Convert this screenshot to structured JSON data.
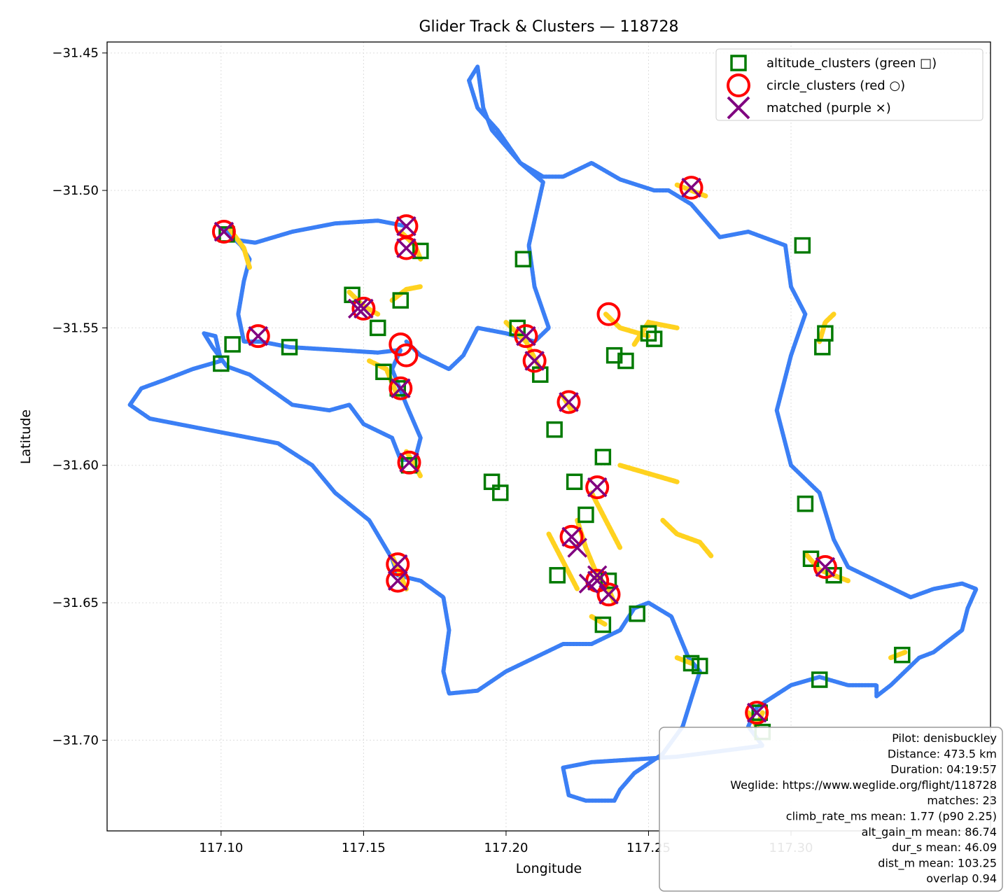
{
  "chart_data": {
    "type": "scatter",
    "title": "Glider Track & Clusters — 118728",
    "xlabel": "Longitude",
    "ylabel": "Latitude",
    "xlim": [
      117.06,
      117.37
    ],
    "ylim": [
      -31.733,
      -31.446
    ],
    "xticks": [
      {
        "value": 117.1,
        "label": "117.10"
      },
      {
        "value": 117.15,
        "label": "117.15"
      },
      {
        "value": 117.2,
        "label": "117.20"
      },
      {
        "value": 117.25,
        "label": "117.25"
      },
      {
        "value": 117.3,
        "label": "117.30"
      }
    ],
    "yticks": [
      {
        "value": -31.45,
        "label": "−31.45"
      },
      {
        "value": -31.5,
        "label": "−31.50"
      },
      {
        "value": -31.55,
        "label": "−31.55"
      },
      {
        "value": -31.6,
        "label": "−31.60"
      },
      {
        "value": -31.65,
        "label": "−31.65"
      },
      {
        "value": -31.7,
        "label": "−31.70"
      }
    ],
    "grid": true,
    "legend_position": "top-right",
    "colors": {
      "track": "#3b7ff5",
      "climb": "#ffd21f",
      "altitude_clusters": "#007a00",
      "circle_clusters": "#ff0000",
      "matched": "#800080"
    },
    "legend": [
      {
        "key": "altitude_clusters",
        "label": "altitude_clusters (green □)",
        "marker": "square"
      },
      {
        "key": "circle_clusters",
        "label": "circle_clusters (red ○)",
        "marker": "circle"
      },
      {
        "key": "matched",
        "label": "matched (purple ×)",
        "marker": "x"
      }
    ],
    "track": [
      [
        117.165,
        -31.513
      ],
      [
        117.155,
        -31.511
      ],
      [
        117.14,
        -31.512
      ],
      [
        117.125,
        -31.515
      ],
      [
        117.112,
        -31.519
      ],
      [
        117.105,
        -31.518
      ],
      [
        117.101,
        -31.514
      ],
      [
        117.107,
        -31.52
      ],
      [
        117.11,
        -31.525
      ],
      [
        117.108,
        -31.533
      ],
      [
        117.106,
        -31.545
      ],
      [
        117.108,
        -31.555
      ],
      [
        117.114,
        -31.555
      ],
      [
        117.124,
        -31.557
      ],
      [
        117.14,
        -31.558
      ],
      [
        117.155,
        -31.559
      ],
      [
        117.163,
        -31.558
      ],
      [
        117.163,
        -31.558
      ],
      [
        117.16,
        -31.565
      ],
      [
        117.165,
        -31.578
      ],
      [
        117.17,
        -31.59
      ],
      [
        117.168,
        -31.598
      ],
      [
        117.163,
        -31.598
      ],
      [
        117.16,
        -31.59
      ],
      [
        117.15,
        -31.585
      ],
      [
        117.145,
        -31.578
      ],
      [
        117.138,
        -31.58
      ],
      [
        117.125,
        -31.578
      ],
      [
        117.11,
        -31.567
      ],
      [
        117.102,
        -31.564
      ],
      [
        117.097,
        -31.557
      ],
      [
        117.094,
        -31.552
      ],
      [
        117.098,
        -31.553
      ],
      [
        117.1,
        -31.562
      ],
      [
        117.09,
        -31.565
      ],
      [
        117.08,
        -31.569
      ],
      [
        117.072,
        -31.572
      ],
      [
        117.068,
        -31.578
      ],
      [
        117.075,
        -31.583
      ],
      [
        117.09,
        -31.586
      ],
      [
        117.105,
        -31.589
      ],
      [
        117.12,
        -31.592
      ],
      [
        117.132,
        -31.6
      ],
      [
        117.14,
        -31.61
      ],
      [
        117.152,
        -31.62
      ],
      [
        117.16,
        -31.634
      ],
      [
        117.162,
        -31.64
      ],
      [
        117.17,
        -31.642
      ],
      [
        117.178,
        -31.648
      ],
      [
        117.18,
        -31.66
      ],
      [
        117.178,
        -31.675
      ],
      [
        117.18,
        -31.683
      ],
      [
        117.19,
        -31.682
      ],
      [
        117.2,
        -31.675
      ],
      [
        117.21,
        -31.67
      ],
      [
        117.22,
        -31.665
      ],
      [
        117.23,
        -31.665
      ],
      [
        117.24,
        -31.66
      ],
      [
        117.245,
        -31.652
      ],
      [
        117.25,
        -31.65
      ],
      [
        117.258,
        -31.655
      ],
      [
        117.264,
        -31.67
      ],
      [
        117.268,
        -31.675
      ],
      [
        117.265,
        -31.685
      ],
      [
        117.262,
        -31.695
      ],
      [
        117.255,
        -31.705
      ],
      [
        117.245,
        -31.712
      ],
      [
        117.24,
        -31.718
      ],
      [
        117.238,
        -31.722
      ],
      [
        117.228,
        -31.722
      ],
      [
        117.222,
        -31.72
      ],
      [
        117.22,
        -31.71
      ],
      [
        117.23,
        -31.708
      ],
      [
        117.26,
        -31.706
      ],
      [
        117.29,
        -31.702
      ],
      [
        117.285,
        -31.695
      ],
      [
        117.288,
        -31.688
      ],
      [
        117.3,
        -31.68
      ],
      [
        117.31,
        -31.677
      ],
      [
        117.32,
        -31.68
      ],
      [
        117.33,
        -31.68
      ],
      [
        117.33,
        -31.684
      ],
      [
        117.335,
        -31.68
      ],
      [
        117.34,
        -31.675
      ],
      [
        117.345,
        -31.67
      ],
      [
        117.35,
        -31.668
      ],
      [
        117.36,
        -31.66
      ],
      [
        117.362,
        -31.652
      ],
      [
        117.365,
        -31.645
      ],
      [
        117.36,
        -31.643
      ],
      [
        117.35,
        -31.645
      ],
      [
        117.342,
        -31.648
      ],
      [
        117.33,
        -31.642
      ],
      [
        117.32,
        -31.637
      ],
      [
        117.315,
        -31.627
      ],
      [
        117.31,
        -31.61
      ],
      [
        117.3,
        -31.6
      ],
      [
        117.295,
        -31.58
      ],
      [
        117.3,
        -31.56
      ],
      [
        117.305,
        -31.545
      ],
      [
        117.3,
        -31.535
      ],
      [
        117.298,
        -31.52
      ],
      [
        117.285,
        -31.515
      ],
      [
        117.275,
        -31.517
      ],
      [
        117.265,
        -31.505
      ],
      [
        117.257,
        -31.5
      ],
      [
        117.252,
        -31.5
      ],
      [
        117.24,
        -31.496
      ],
      [
        117.23,
        -31.49
      ],
      [
        117.22,
        -31.495
      ],
      [
        117.213,
        -31.495
      ],
      [
        117.205,
        -31.49
      ],
      [
        117.197,
        -31.478
      ],
      [
        117.19,
        -31.47
      ],
      [
        117.187,
        -31.46
      ],
      [
        117.19,
        -31.455
      ],
      [
        117.192,
        -31.47
      ],
      [
        117.195,
        -31.478
      ],
      [
        117.205,
        -31.49
      ],
      [
        117.213,
        -31.497
      ],
      [
        117.208,
        -31.52
      ],
      [
        117.21,
        -31.535
      ],
      [
        117.215,
        -31.55
      ],
      [
        117.21,
        -31.555
      ],
      [
        117.2,
        -31.552
      ],
      [
        117.19,
        -31.55
      ],
      [
        117.185,
        -31.56
      ],
      [
        117.18,
        -31.565
      ],
      [
        117.17,
        -31.56
      ],
      [
        117.165,
        -31.555
      ]
    ],
    "climb_segments": [
      [
        [
          117.103,
          -31.514
        ],
        [
          117.108,
          -31.521
        ],
        [
          117.11,
          -31.528
        ]
      ],
      [
        [
          117.16,
          -31.54
        ],
        [
          117.165,
          -31.536
        ],
        [
          117.17,
          -31.535
        ]
      ],
      [
        [
          117.145,
          -31.537
        ],
        [
          117.15,
          -31.542
        ],
        [
          117.155,
          -31.545
        ]
      ],
      [
        [
          117.152,
          -31.562
        ],
        [
          117.158,
          -31.565
        ],
        [
          117.162,
          -31.575
        ]
      ],
      [
        [
          117.163,
          -31.515
        ],
        [
          117.168,
          -31.52
        ],
        [
          117.17,
          -31.525
        ]
      ],
      [
        [
          117.2,
          -31.548
        ],
        [
          117.207,
          -31.555
        ],
        [
          117.212,
          -31.565
        ]
      ],
      [
        [
          117.235,
          -31.545
        ],
        [
          117.24,
          -31.55
        ],
        [
          117.25,
          -31.553
        ]
      ],
      [
        [
          117.22,
          -31.575
        ],
        [
          117.223,
          -31.58
        ]
      ],
      [
        [
          117.16,
          -31.633
        ],
        [
          117.163,
          -31.64
        ],
        [
          117.165,
          -31.645
        ]
      ],
      [
        [
          117.165,
          -31.595
        ],
        [
          117.168,
          -31.6
        ],
        [
          117.17,
          -31.604
        ]
      ],
      [
        [
          117.225,
          -31.62
        ],
        [
          117.228,
          -31.63
        ],
        [
          117.232,
          -31.64
        ],
        [
          117.236,
          -31.645
        ],
        [
          117.238,
          -31.65
        ]
      ],
      [
        [
          117.215,
          -31.625
        ],
        [
          117.22,
          -31.635
        ],
        [
          117.225,
          -31.645
        ]
      ],
      [
        [
          117.23,
          -31.61
        ],
        [
          117.235,
          -31.62
        ],
        [
          117.24,
          -31.63
        ]
      ],
      [
        [
          117.26,
          -31.498
        ],
        [
          117.265,
          -31.5
        ],
        [
          117.27,
          -31.502
        ]
      ],
      [
        [
          117.31,
          -31.555
        ],
        [
          117.312,
          -31.548
        ],
        [
          117.315,
          -31.545
        ]
      ],
      [
        [
          117.285,
          -31.69
        ],
        [
          117.288,
          -31.695
        ],
        [
          117.29,
          -31.69
        ]
      ],
      [
        [
          117.305,
          -31.632
        ],
        [
          117.31,
          -31.638
        ],
        [
          117.32,
          -31.642
        ]
      ],
      [
        [
          117.255,
          -31.62
        ],
        [
          117.26,
          -31.625
        ],
        [
          117.268,
          -31.628
        ],
        [
          117.272,
          -31.633
        ]
      ],
      [
        [
          117.23,
          -31.655
        ],
        [
          117.235,
          -31.658
        ]
      ],
      [
        [
          117.26,
          -31.67
        ],
        [
          117.265,
          -31.672
        ]
      ],
      [
        [
          117.335,
          -31.67
        ],
        [
          117.34,
          -31.668
        ]
      ],
      [
        [
          117.24,
          -31.6
        ],
        [
          117.25,
          -31.603
        ],
        [
          117.26,
          -31.606
        ]
      ],
      [
        [
          117.245,
          -31.556
        ],
        [
          117.25,
          -31.548
        ],
        [
          117.26,
          -31.55
        ]
      ]
    ],
    "altitude_clusters": [
      [
        117.102,
        -31.516
      ],
      [
        117.104,
        -31.556
      ],
      [
        117.1,
        -31.563
      ],
      [
        117.124,
        -31.557
      ],
      [
        117.146,
        -31.538
      ],
      [
        117.155,
        -31.55
      ],
      [
        117.163,
        -31.54
      ],
      [
        117.157,
        -31.566
      ],
      [
        117.162,
        -31.572
      ],
      [
        117.17,
        -31.522
      ],
      [
        117.166,
        -31.6
      ],
      [
        117.206,
        -31.525
      ],
      [
        117.204,
        -31.55
      ],
      [
        117.212,
        -31.567
      ],
      [
        117.195,
        -31.606
      ],
      [
        117.198,
        -31.61
      ],
      [
        117.217,
        -31.587
      ],
      [
        117.224,
        -31.606
      ],
      [
        117.234,
        -31.597
      ],
      [
        117.228,
        -31.618
      ],
      [
        117.218,
        -31.64
      ],
      [
        117.234,
        -31.658
      ],
      [
        117.236,
        -31.642
      ],
      [
        117.246,
        -31.654
      ],
      [
        117.238,
        -31.56
      ],
      [
        117.242,
        -31.562
      ],
      [
        117.25,
        -31.552
      ],
      [
        117.252,
        -31.554
      ],
      [
        117.265,
        -31.672
      ],
      [
        117.268,
        -31.673
      ],
      [
        117.304,
        -31.52
      ],
      [
        117.312,
        -31.552
      ],
      [
        117.311,
        -31.557
      ],
      [
        117.29,
        -31.697
      ],
      [
        117.31,
        -31.678
      ],
      [
        117.339,
        -31.669
      ],
      [
        117.289,
        -31.69
      ],
      [
        117.305,
        -31.614
      ],
      [
        117.307,
        -31.634
      ],
      [
        117.315,
        -31.64
      ]
    ],
    "circle_clusters": [
      [
        117.101,
        -31.515
      ],
      [
        117.113,
        -31.553
      ],
      [
        117.15,
        -31.543
      ],
      [
        117.163,
        -31.556
      ],
      [
        117.165,
        -31.56
      ],
      [
        117.163,
        -31.572
      ],
      [
        117.165,
        -31.513
      ],
      [
        117.165,
        -31.521
      ],
      [
        117.166,
        -31.599
      ],
      [
        117.207,
        -31.553
      ],
      [
        117.21,
        -31.562
      ],
      [
        117.222,
        -31.577
      ],
      [
        117.232,
        -31.608
      ],
      [
        117.236,
        -31.545
      ],
      [
        117.162,
        -31.636
      ],
      [
        117.162,
        -31.642
      ],
      [
        117.223,
        -31.626
      ],
      [
        117.232,
        -31.642
      ],
      [
        117.236,
        -31.647
      ],
      [
        117.265,
        -31.499
      ],
      [
        117.288,
        -31.69
      ],
      [
        117.312,
        -31.637
      ]
    ],
    "matched": [
      [
        117.101,
        -31.515
      ],
      [
        117.113,
        -31.553
      ],
      [
        117.15,
        -31.543
      ],
      [
        117.163,
        -31.572
      ],
      [
        117.165,
        -31.513
      ],
      [
        117.165,
        -31.521
      ],
      [
        117.166,
        -31.599
      ],
      [
        117.207,
        -31.553
      ],
      [
        117.21,
        -31.562
      ],
      [
        117.222,
        -31.577
      ],
      [
        117.232,
        -31.608
      ],
      [
        117.162,
        -31.636
      ],
      [
        117.162,
        -31.642
      ],
      [
        117.223,
        -31.626
      ],
      [
        117.232,
        -31.642
      ],
      [
        117.236,
        -31.647
      ],
      [
        117.265,
        -31.499
      ],
      [
        117.288,
        -31.69
      ],
      [
        117.312,
        -31.637
      ],
      [
        117.148,
        -31.543
      ],
      [
        117.232,
        -31.64
      ],
      [
        117.225,
        -31.63
      ],
      [
        117.229,
        -31.643
      ]
    ],
    "info_box": [
      "Pilot: denisbuckley",
      "Distance: 473.5 km",
      "Duration: 04:19:57",
      "Weglide: https://www.weglide.org/flight/118728",
      "matches: 23",
      "climb_rate_ms mean: 1.77 (p90 2.25)",
      "alt_gain_m mean: 86.74",
      "dur_s mean: 46.09",
      "dist_m mean: 103.25",
      "overlap 0.94"
    ]
  }
}
